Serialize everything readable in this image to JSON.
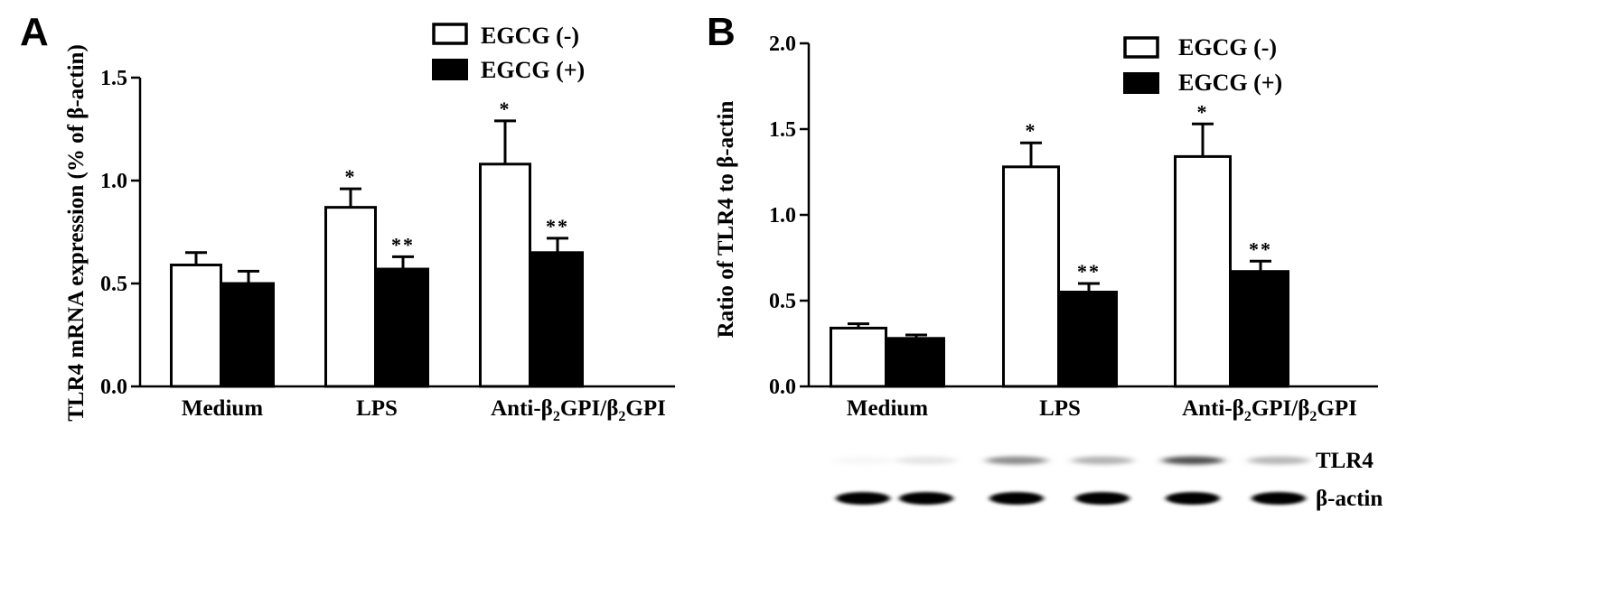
{
  "colors": {
    "ink": "#000000",
    "paper": "#ffffff"
  },
  "chart_data": [
    {
      "type": "bar",
      "panel_label": "A",
      "ylabel": "TLR4 mRNA expression (% of β-actin)",
      "ylim": [
        0,
        1.5
      ],
      "yticks": [
        "0.0",
        "0.5",
        "1.0",
        "1.5"
      ],
      "categories": [
        {
          "text": "Medium"
        },
        {
          "text": "LPS"
        },
        {
          "text": "Anti-β",
          "sub1": "2",
          "mid": "GPI/β",
          "sub2": "2",
          "tail": "GPI"
        }
      ],
      "series": [
        {
          "name": "EGCG (-)",
          "fill": "white",
          "values": [
            0.59,
            0.87,
            1.08
          ],
          "errors": [
            0.06,
            0.09,
            0.21
          ],
          "annotations": [
            "",
            "*",
            "*"
          ]
        },
        {
          "name": "EGCG (+)",
          "fill": "black",
          "values": [
            0.5,
            0.57,
            0.65
          ],
          "errors": [
            0.06,
            0.06,
            0.07
          ],
          "annotations": [
            "",
            "**",
            "**"
          ]
        }
      ],
      "legend": "top-right"
    },
    {
      "type": "bar",
      "panel_label": "B",
      "ylabel": "Ratio of TLR4 to β-actin",
      "ylim": [
        0,
        2.0
      ],
      "yticks": [
        "0.0",
        "0.5",
        "1.0",
        "1.5",
        "2.0"
      ],
      "categories": [
        {
          "text": "Medium"
        },
        {
          "text": "LPS"
        },
        {
          "text": "Anti-β",
          "sub1": "2",
          "mid": "GPI/β",
          "sub2": "2",
          "tail": "GPI"
        }
      ],
      "series": [
        {
          "name": "EGCG (-)",
          "fill": "white",
          "values": [
            0.34,
            1.28,
            1.34
          ],
          "errors": [
            0.025,
            0.14,
            0.19
          ],
          "annotations": [
            "",
            "*",
            "*"
          ]
        },
        {
          "name": "EGCG (+)",
          "fill": "black",
          "values": [
            0.28,
            0.55,
            0.67
          ],
          "errors": [
            0.02,
            0.05,
            0.06
          ],
          "annotations": [
            "",
            "**",
            "**"
          ]
        }
      ],
      "legend": "top-right",
      "blot": {
        "rows": [
          {
            "label": "TLR4",
            "intensities": [
              0.03,
              0.1,
              0.45,
              0.3,
              0.7,
              0.28
            ]
          },
          {
            "label": "β-actin",
            "intensities": [
              1,
              1,
              1,
              1,
              1,
              1
            ]
          }
        ]
      }
    }
  ]
}
